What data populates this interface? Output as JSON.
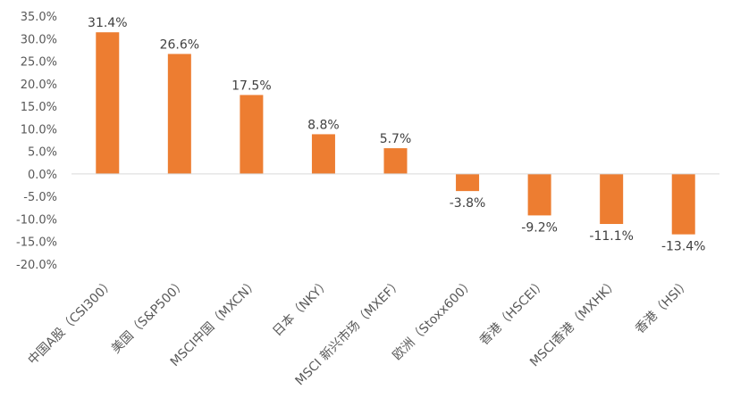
{
  "chart_data": {
    "type": "bar",
    "categories": [
      "中国A股（CSI300）",
      "美国（S&P500）",
      "MSCI中国（MXCN）",
      "日本（NKY）",
      "MSCI 新兴市场（MXEF）",
      "欧洲（Stoxx600）",
      "香港（HSCEI）",
      "MSCI香港（MXHK）",
      "香港（HSI）"
    ],
    "values": [
      31.4,
      26.6,
      17.5,
      8.8,
      5.7,
      -3.8,
      -9.2,
      -11.1,
      -13.4
    ],
    "value_labels": [
      "31.4%",
      "26.6%",
      "17.5%",
      "8.8%",
      "5.7%",
      "-3.8%",
      "-9.2%",
      "-11.1%",
      "-13.4%"
    ],
    "y_ticks": [
      35,
      30,
      25,
      20,
      15,
      10,
      5,
      0,
      -5,
      -10,
      -15,
      -20
    ],
    "y_tick_labels": [
      "35.0%",
      "30.0%",
      "25.0%",
      "20.0%",
      "15.0%",
      "10.0%",
      "5.0%",
      "0.0%",
      "-5.0%",
      "-10.0%",
      "-15.0%",
      "-20.0%"
    ],
    "ylim": [
      -20,
      35
    ],
    "grid": false,
    "bar_color": "#ED7D31",
    "title": "",
    "xlabel": "",
    "ylabel": ""
  }
}
